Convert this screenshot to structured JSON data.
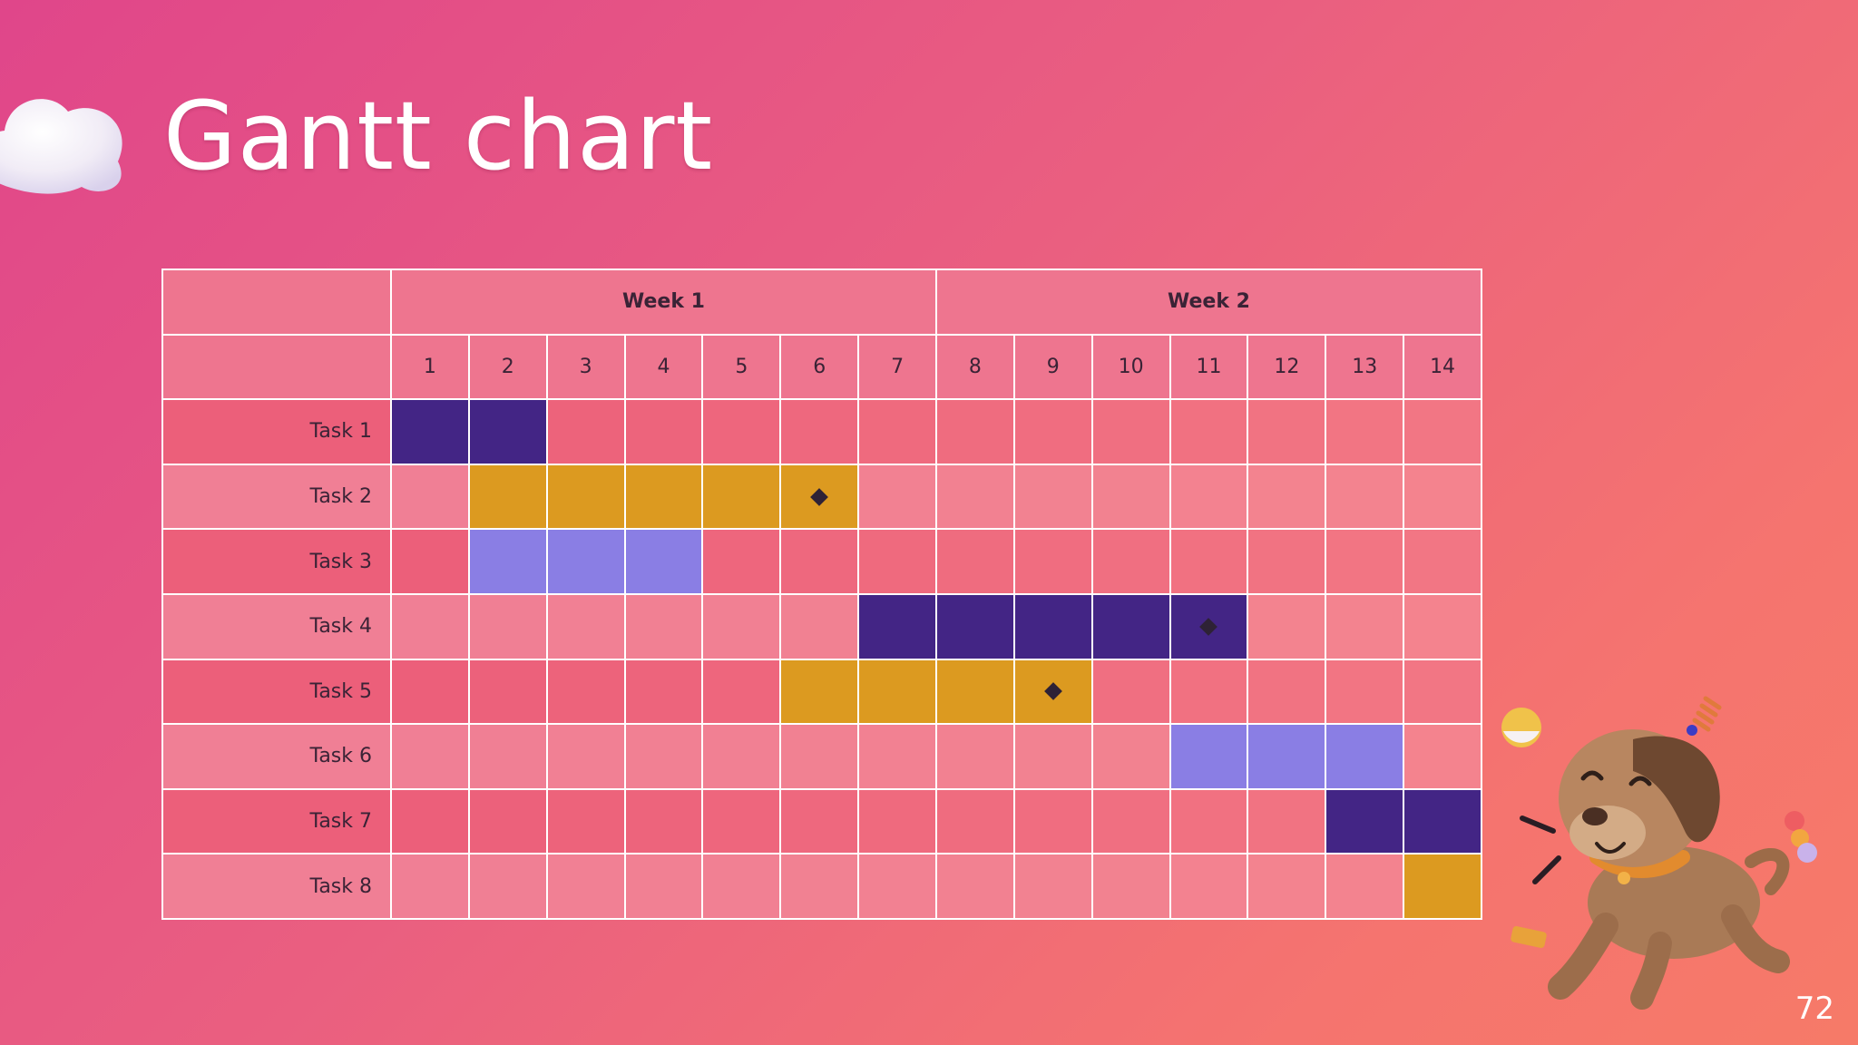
{
  "slide": {
    "title": "Gantt chart",
    "page_number": "72"
  },
  "colors": {
    "dark_purple": "#432585",
    "gold": "#dc9a20",
    "lavender": "#8a7ee4",
    "milestone": "#2e2236"
  },
  "chart_data": {
    "type": "table",
    "chart_subtype": "gantt",
    "weeks": [
      {
        "label": "Week 1",
        "days": [
          1,
          2,
          3,
          4,
          5,
          6,
          7
        ]
      },
      {
        "label": "Week 2",
        "days": [
          8,
          9,
          10,
          11,
          12,
          13,
          14
        ]
      }
    ],
    "days": [
      "1",
      "2",
      "3",
      "4",
      "5",
      "6",
      "7",
      "8",
      "9",
      "10",
      "11",
      "12",
      "13",
      "14"
    ],
    "tasks": [
      {
        "name": "Task 1",
        "start": 1,
        "end": 2,
        "color": "#432585",
        "milestone": null
      },
      {
        "name": "Task 2",
        "start": 2,
        "end": 6,
        "color": "#dc9a20",
        "milestone": 6
      },
      {
        "name": "Task 3",
        "start": 2,
        "end": 4,
        "color": "#8a7ee4",
        "milestone": null
      },
      {
        "name": "Task 4",
        "start": 7,
        "end": 11,
        "color": "#432585",
        "milestone": 11
      },
      {
        "name": "Task 5",
        "start": 6,
        "end": 9,
        "color": "#dc9a20",
        "milestone": 9
      },
      {
        "name": "Task 6",
        "start": 11,
        "end": 13,
        "color": "#8a7ee4",
        "milestone": null
      },
      {
        "name": "Task 7",
        "start": 13,
        "end": 14,
        "color": "#432585",
        "milestone": null
      },
      {
        "name": "Task 8",
        "start": 14,
        "end": 14,
        "color": "#dc9a20",
        "milestone": null
      }
    ]
  }
}
